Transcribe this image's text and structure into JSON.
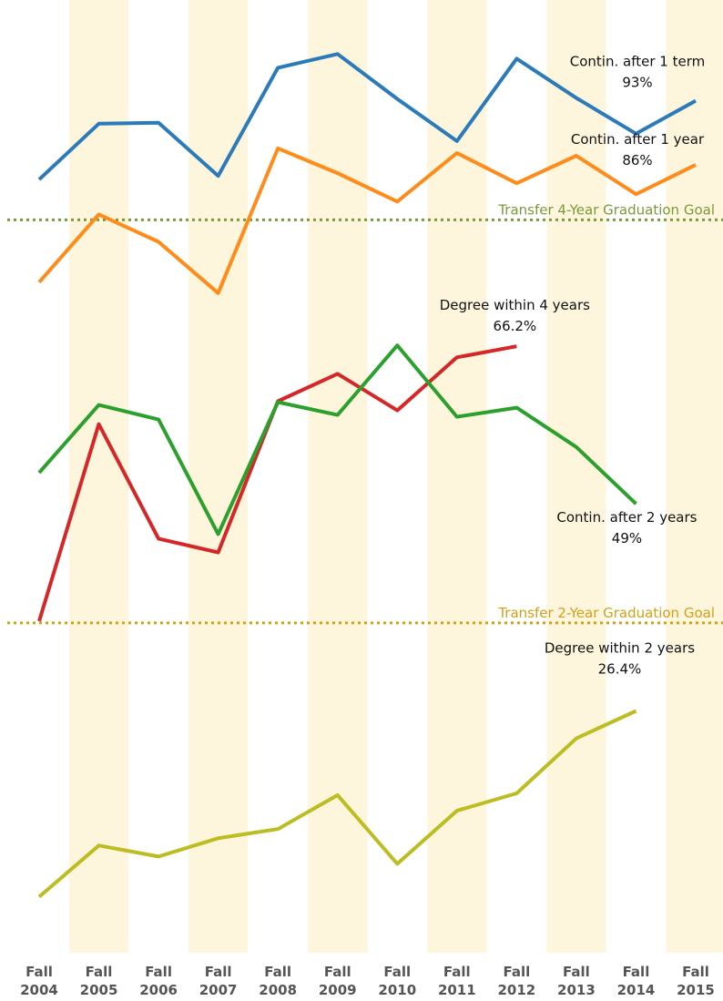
{
  "chart_data": {
    "type": "line",
    "categories": [
      "Fall 2004",
      "Fall 2005",
      "Fall 2006",
      "Fall 2007",
      "Fall 2008",
      "Fall 2009",
      "Fall 2010",
      "Fall 2011",
      "Fall 2012",
      "Fall 2013",
      "Fall 2014",
      "Fall 2015"
    ],
    "series": [
      {
        "name": "Contin. after 1 term",
        "color": "#2b7bba",
        "values": [
          84.4,
          90.5,
          90.6,
          84.8,
          96.6,
          98.1,
          93.2,
          88.6,
          97.6,
          93.3,
          89.4,
          93
        ],
        "value_labels": [
          null,
          null,
          null,
          null,
          null,
          null,
          null,
          null,
          null,
          null,
          null,
          "93%"
        ]
      },
      {
        "name": "Contin. after 1 year",
        "color": "#ff8c1a",
        "values": [
          73.2,
          80.6,
          77.6,
          72.0,
          87.8,
          85.1,
          82.0,
          87.3,
          84.0,
          87.0,
          82.8,
          86
        ],
        "value_labels": [
          null,
          null,
          null,
          null,
          null,
          null,
          null,
          null,
          null,
          null,
          null,
          "86%"
        ]
      },
      {
        "name": "Degree within 4 years",
        "color": "#d62728",
        "values": [
          36.2,
          57.7,
          45.2,
          43.7,
          60.2,
          63.2,
          59.2,
          65.0,
          66.2,
          null,
          null,
          null
        ],
        "value_labels": [
          null,
          null,
          null,
          null,
          null,
          null,
          null,
          null,
          "66.2%",
          null,
          null,
          null
        ]
      },
      {
        "name": "Contin. after 2 years",
        "color": "#2ca02c",
        "values": [
          52.4,
          59.8,
          58.2,
          45.7,
          60.1,
          58.7,
          66.3,
          58.5,
          59.5,
          55.2,
          49,
          null
        ],
        "value_labels": [
          null,
          null,
          null,
          null,
          null,
          null,
          null,
          null,
          null,
          null,
          "49%",
          null
        ]
      },
      {
        "name": "Degree within 2 years",
        "color": "#bcbd22",
        "values": [
          6.1,
          11.7,
          10.5,
          12.5,
          13.5,
          17.2,
          9.7,
          15.5,
          17.4,
          23.4,
          26.4,
          null
        ],
        "value_labels": [
          null,
          null,
          null,
          null,
          null,
          null,
          null,
          null,
          null,
          null,
          "26.4%",
          null
        ]
      }
    ],
    "goals": [
      {
        "label": "Transfer 4-Year Graduation Goal",
        "value": 80,
        "color": "#7a9a3a"
      },
      {
        "label": "Transfer 2-Year Graduation Goal",
        "value": 36,
        "color": "#d4a017"
      }
    ],
    "ylim": [
      0,
      104
    ]
  }
}
